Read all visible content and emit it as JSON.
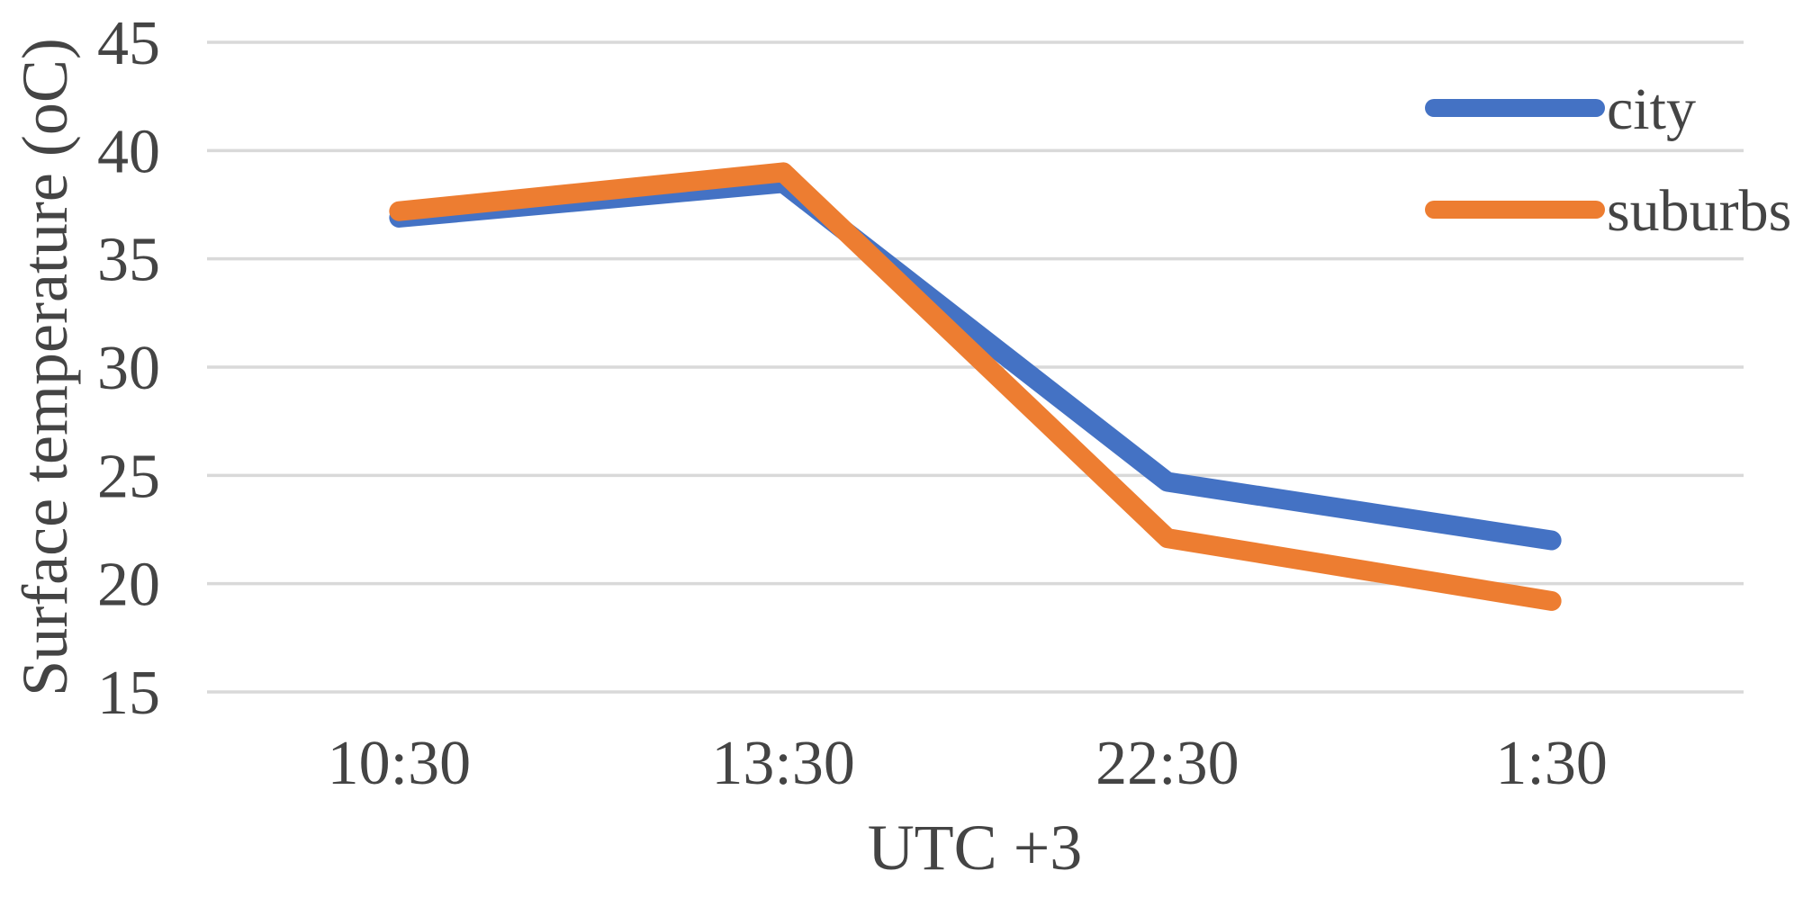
{
  "chart_data": {
    "type": "line",
    "categories": [
      "10:30",
      "13:30",
      "22:30",
      "1:30"
    ],
    "series": [
      {
        "name": "city",
        "color": "#4472C4",
        "values": [
          36.9,
          38.5,
          24.7,
          22.0
        ]
      },
      {
        "name": "suburbs",
        "color": "#ED7D31",
        "values": [
          37.2,
          39.0,
          22.1,
          19.2
        ]
      }
    ],
    "title": "",
    "xlabel": "UTC +3",
    "ylabel": "Surface temperature (oC)",
    "ylim": [
      15,
      45
    ],
    "yticks": [
      15,
      20,
      25,
      30,
      35,
      40,
      45
    ],
    "grid": "horizontal-only",
    "legend_position": "top-right",
    "colors": {
      "gridline": "#D9D9D9",
      "text": "#444444",
      "background": "#FFFFFF"
    }
  }
}
